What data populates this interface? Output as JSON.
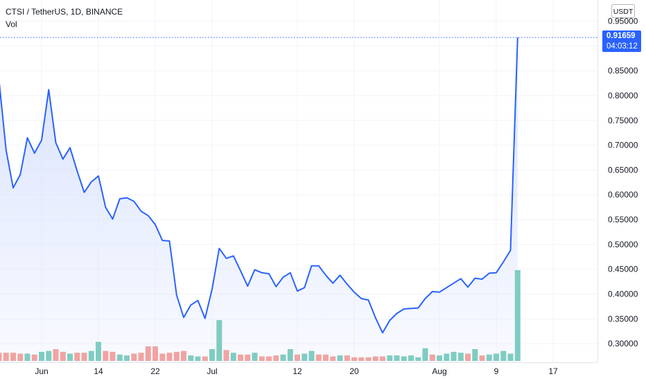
{
  "header": {
    "title": "CTSI / TetherUS, 1D, BINANCE",
    "vol_label": "Vol"
  },
  "currency_button": "USDT",
  "last_price": {
    "value": "0.91659",
    "countdown": "04:03:12",
    "color": "#2962ff"
  },
  "colors": {
    "line": "#2962ff",
    "area_top": "#d6e0fd",
    "vol_up": "#7fccc2",
    "vol_down": "#f0a4a2",
    "grid": "#f0f3fa"
  },
  "chart_data": {
    "type": "area",
    "ylim": [
      0.26,
      0.97
    ],
    "yticks": [
      "0.95000",
      "0.90000",
      "0.85000",
      "0.80000",
      "0.75000",
      "0.70000",
      "0.65000",
      "0.60000",
      "0.55000",
      "0.50000",
      "0.45000",
      "0.40000",
      "0.35000",
      "0.30000"
    ],
    "ytick_values": [
      0.95,
      0.9,
      0.85,
      0.8,
      0.75,
      0.7,
      0.65,
      0.6,
      0.55,
      0.5,
      0.45,
      0.4,
      0.35,
      0.3
    ],
    "xticks": [
      {
        "label": "Jun",
        "day": 6
      },
      {
        "label": "14",
        "day": 14
      },
      {
        "label": "22",
        "day": 22
      },
      {
        "label": "Jul",
        "day": 30
      },
      {
        "label": "12",
        "day": 42
      },
      {
        "label": "20",
        "day": 50
      },
      {
        "label": "Aug",
        "day": 62
      },
      {
        "label": "9",
        "day": 70
      },
      {
        "label": "17",
        "day": 78
      }
    ],
    "first_day": 0,
    "series": [
      {
        "values": [
          0.832,
          0.69,
          0.614,
          0.641,
          0.715,
          0.684,
          0.71,
          0.812,
          0.705,
          0.672,
          0.695,
          0.648,
          0.605,
          0.626,
          0.638,
          0.575,
          0.551,
          0.592,
          0.594,
          0.587,
          0.567,
          0.558,
          0.54,
          0.508,
          0.507,
          0.398,
          0.353,
          0.378,
          0.387,
          0.351,
          0.41,
          0.492,
          0.472,
          0.477,
          0.447,
          0.416,
          0.449,
          0.443,
          0.441,
          0.415,
          0.434,
          0.443,
          0.406,
          0.413,
          0.457,
          0.457,
          0.438,
          0.422,
          0.438,
          0.42,
          0.404,
          0.391,
          0.388,
          0.352,
          0.322,
          0.347,
          0.361,
          0.37,
          0.371,
          0.372,
          0.391,
          0.405,
          0.404,
          0.413,
          0.422,
          0.431,
          0.414,
          0.432,
          0.43,
          0.442,
          0.443,
          0.465,
          0.488,
          0.917
        ]
      }
    ],
    "volume": [
      {
        "v": 0.09,
        "up": false
      },
      {
        "v": 0.09,
        "up": false
      },
      {
        "v": 0.09,
        "up": false
      },
      {
        "v": 0.08,
        "up": false
      },
      {
        "v": 0.08,
        "up": true
      },
      {
        "v": 0.07,
        "up": false
      },
      {
        "v": 0.1,
        "up": true
      },
      {
        "v": 0.11,
        "up": true
      },
      {
        "v": 0.13,
        "up": false
      },
      {
        "v": 0.1,
        "up": false
      },
      {
        "v": 0.08,
        "up": true
      },
      {
        "v": 0.09,
        "up": false
      },
      {
        "v": 0.09,
        "up": false
      },
      {
        "v": 0.11,
        "up": true
      },
      {
        "v": 0.21,
        "up": true
      },
      {
        "v": 0.11,
        "up": false
      },
      {
        "v": 0.1,
        "up": false
      },
      {
        "v": 0.07,
        "up": true
      },
      {
        "v": 0.06,
        "up": true
      },
      {
        "v": 0.08,
        "up": false
      },
      {
        "v": 0.09,
        "up": false
      },
      {
        "v": 0.16,
        "up": false
      },
      {
        "v": 0.16,
        "up": false
      },
      {
        "v": 0.08,
        "up": false
      },
      {
        "v": 0.09,
        "up": false
      },
      {
        "v": 0.1,
        "up": false
      },
      {
        "v": 0.11,
        "up": false
      },
      {
        "v": 0.06,
        "up": true
      },
      {
        "v": 0.05,
        "up": true
      },
      {
        "v": 0.05,
        "up": false
      },
      {
        "v": 0.13,
        "up": true
      },
      {
        "v": 0.45,
        "up": true
      },
      {
        "v": 0.12,
        "up": false
      },
      {
        "v": 0.09,
        "up": true
      },
      {
        "v": 0.07,
        "up": false
      },
      {
        "v": 0.07,
        "up": false
      },
      {
        "v": 0.09,
        "up": true
      },
      {
        "v": 0.05,
        "up": false
      },
      {
        "v": 0.05,
        "up": false
      },
      {
        "v": 0.06,
        "up": false
      },
      {
        "v": 0.07,
        "up": true
      },
      {
        "v": 0.13,
        "up": true
      },
      {
        "v": 0.07,
        "up": false
      },
      {
        "v": 0.08,
        "up": true
      },
      {
        "v": 0.11,
        "up": true
      },
      {
        "v": 0.07,
        "up": false
      },
      {
        "v": 0.07,
        "up": false
      },
      {
        "v": 0.05,
        "up": false
      },
      {
        "v": 0.06,
        "up": true
      },
      {
        "v": 0.06,
        "up": false
      },
      {
        "v": 0.04,
        "up": false
      },
      {
        "v": 0.04,
        "up": false
      },
      {
        "v": 0.04,
        "up": false
      },
      {
        "v": 0.05,
        "up": false
      },
      {
        "v": 0.05,
        "up": false
      },
      {
        "v": 0.06,
        "up": true
      },
      {
        "v": 0.06,
        "up": true
      },
      {
        "v": 0.05,
        "up": true
      },
      {
        "v": 0.06,
        "up": true
      },
      {
        "v": 0.04,
        "up": true
      },
      {
        "v": 0.14,
        "up": true
      },
      {
        "v": 0.07,
        "up": false
      },
      {
        "v": 0.06,
        "up": true
      },
      {
        "v": 0.08,
        "up": true
      },
      {
        "v": 0.1,
        "up": true
      },
      {
        "v": 0.09,
        "up": true
      },
      {
        "v": 0.08,
        "up": false
      },
      {
        "v": 0.13,
        "up": true
      },
      {
        "v": 0.06,
        "up": false
      },
      {
        "v": 0.07,
        "up": true
      },
      {
        "v": 0.08,
        "up": true
      },
      {
        "v": 0.11,
        "up": true
      },
      {
        "v": 0.08,
        "up": true
      },
      {
        "v": 1.0,
        "up": true
      }
    ],
    "grid": true
  }
}
